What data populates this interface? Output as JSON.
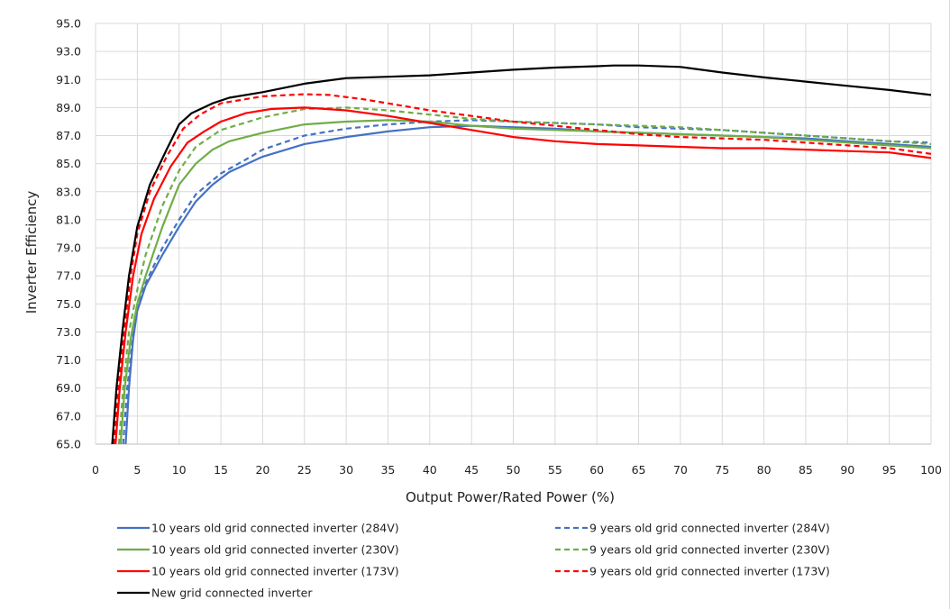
{
  "chart_data": {
    "type": "line",
    "title": "",
    "xlabel": "Output Power/Rated Power (%)",
    "ylabel": "Inverter Efficiency",
    "xlim": [
      0,
      100
    ],
    "ylim": [
      65,
      95
    ],
    "x_ticks": [
      0,
      5,
      10,
      15,
      20,
      25,
      30,
      35,
      40,
      45,
      50,
      55,
      60,
      65,
      70,
      75,
      80,
      85,
      90,
      95,
      100
    ],
    "y_ticks": [
      "65.0",
      "67.0",
      "69.0",
      "71.0",
      "73.0",
      "75.0",
      "77.0",
      "79.0",
      "81.0",
      "83.0",
      "85.0",
      "87.0",
      "89.0",
      "91.0",
      "93.0",
      "95.0"
    ],
    "grid": true,
    "legend_position": "bottom",
    "series": [
      {
        "name": "10 years old grid connected inverter (284V)",
        "color": "#4472C4",
        "dash": "solid",
        "points": [
          [
            3.6,
            65
          ],
          [
            4,
            69
          ],
          [
            4.5,
            72.5
          ],
          [
            5,
            74.5
          ],
          [
            6,
            76.3
          ],
          [
            8,
            78.5
          ],
          [
            10,
            80.5
          ],
          [
            12,
            82.3
          ],
          [
            14,
            83.5
          ],
          [
            16,
            84.4
          ],
          [
            20,
            85.5
          ],
          [
            25,
            86.4
          ],
          [
            30,
            86.9
          ],
          [
            35,
            87.3
          ],
          [
            40,
            87.6
          ],
          [
            45,
            87.7
          ],
          [
            50,
            87.6
          ],
          [
            55,
            87.5
          ],
          [
            60,
            87.3
          ],
          [
            65,
            87.2
          ],
          [
            70,
            87.1
          ],
          [
            75,
            87.0
          ],
          [
            80,
            86.9
          ],
          [
            85,
            86.8
          ],
          [
            90,
            86.6
          ],
          [
            95,
            86.4
          ],
          [
            100,
            86.2
          ]
        ]
      },
      {
        "name": "9 years old grid connected inverter (284V)",
        "color": "#4472C4",
        "dash": "dashed",
        "points": [
          [
            3.3,
            65
          ],
          [
            3.8,
            69
          ],
          [
            4.5,
            72.8
          ],
          [
            5,
            74.8
          ],
          [
            6,
            76.5
          ],
          [
            8,
            79
          ],
          [
            10,
            81
          ],
          [
            12,
            82.8
          ],
          [
            15,
            84.3
          ],
          [
            18,
            85.3
          ],
          [
            20,
            86
          ],
          [
            25,
            87
          ],
          [
            30,
            87.5
          ],
          [
            35,
            87.8
          ],
          [
            40,
            88.0
          ],
          [
            45,
            88.1
          ],
          [
            50,
            88.0
          ],
          [
            55,
            87.9
          ],
          [
            60,
            87.8
          ],
          [
            65,
            87.6
          ],
          [
            70,
            87.5
          ],
          [
            75,
            87.4
          ],
          [
            80,
            87.2
          ],
          [
            85,
            87.0
          ],
          [
            90,
            86.8
          ],
          [
            95,
            86.6
          ],
          [
            100,
            86.5
          ]
        ]
      },
      {
        "name": "10 years old grid connected inverter (230V)",
        "color": "#70AD47",
        "dash": "solid",
        "points": [
          [
            3,
            65
          ],
          [
            3.5,
            69
          ],
          [
            4.2,
            72.5
          ],
          [
            5,
            75
          ],
          [
            6,
            77
          ],
          [
            8,
            80.5
          ],
          [
            10,
            83.5
          ],
          [
            12,
            85
          ],
          [
            14,
            86
          ],
          [
            16,
            86.6
          ],
          [
            20,
            87.2
          ],
          [
            25,
            87.8
          ],
          [
            30,
            88
          ],
          [
            35,
            88.1
          ],
          [
            40,
            88
          ],
          [
            45,
            87.7
          ],
          [
            50,
            87.5
          ],
          [
            55,
            87.4
          ],
          [
            60,
            87.3
          ],
          [
            65,
            87.2
          ],
          [
            70,
            87.1
          ],
          [
            75,
            87.0
          ],
          [
            80,
            86.9
          ],
          [
            85,
            86.7
          ],
          [
            90,
            86.5
          ],
          [
            95,
            86.3
          ],
          [
            100,
            86.1
          ]
        ]
      },
      {
        "name": "9 years old grid connected inverter (230V)",
        "color": "#70AD47",
        "dash": "dashed",
        "points": [
          [
            2.8,
            65
          ],
          [
            3.3,
            69
          ],
          [
            4,
            73
          ],
          [
            5,
            76
          ],
          [
            6,
            78.5
          ],
          [
            8,
            82
          ],
          [
            10,
            84.5
          ],
          [
            12,
            86.2
          ],
          [
            15,
            87.4
          ],
          [
            20,
            88.3
          ],
          [
            25,
            88.9
          ],
          [
            30,
            89
          ],
          [
            35,
            88.8
          ],
          [
            40,
            88.5
          ],
          [
            45,
            88.2
          ],
          [
            50,
            88
          ],
          [
            55,
            87.9
          ],
          [
            60,
            87.8
          ],
          [
            65,
            87.7
          ],
          [
            70,
            87.6
          ],
          [
            75,
            87.4
          ],
          [
            80,
            87.2
          ],
          [
            85,
            87.0
          ],
          [
            90,
            86.8
          ],
          [
            95,
            86.6
          ],
          [
            100,
            86.4
          ]
        ]
      },
      {
        "name": "10 years old grid connected inverter (173V)",
        "color": "#FF0000",
        "dash": "solid",
        "points": [
          [
            2.4,
            65
          ],
          [
            2.9,
            69
          ],
          [
            3.6,
            73
          ],
          [
            4.5,
            77
          ],
          [
            5.5,
            80
          ],
          [
            7,
            82.5
          ],
          [
            9,
            84.8
          ],
          [
            11,
            86.5
          ],
          [
            13,
            87.3
          ],
          [
            15,
            88
          ],
          [
            18,
            88.6
          ],
          [
            21,
            88.9
          ],
          [
            25,
            89
          ],
          [
            30,
            88.8
          ],
          [
            35,
            88.4
          ],
          [
            40,
            87.9
          ],
          [
            45,
            87.4
          ],
          [
            50,
            86.9
          ],
          [
            55,
            86.6
          ],
          [
            60,
            86.4
          ],
          [
            65,
            86.3
          ],
          [
            70,
            86.2
          ],
          [
            75,
            86.1
          ],
          [
            80,
            86.1
          ],
          [
            85,
            86.0
          ],
          [
            90,
            85.9
          ],
          [
            95,
            85.8
          ],
          [
            100,
            85.4
          ]
        ]
      },
      {
        "name": "9 years old grid connected inverter (173V)",
        "color": "#FF0000",
        "dash": "dashed",
        "points": [
          [
            2.2,
            65
          ],
          [
            2.7,
            69
          ],
          [
            3.4,
            73
          ],
          [
            4.2,
            77
          ],
          [
            5,
            80
          ],
          [
            6.5,
            83
          ],
          [
            8.5,
            85.5
          ],
          [
            10.5,
            87.5
          ],
          [
            12.5,
            88.5
          ],
          [
            15,
            89.3
          ],
          [
            20,
            89.8
          ],
          [
            25,
            89.95
          ],
          [
            28,
            89.9
          ],
          [
            32,
            89.6
          ],
          [
            35,
            89.3
          ],
          [
            40,
            88.8
          ],
          [
            45,
            88.4
          ],
          [
            50,
            88
          ],
          [
            55,
            87.7
          ],
          [
            60,
            87.4
          ],
          [
            65,
            87.1
          ],
          [
            70,
            86.9
          ],
          [
            75,
            86.8
          ],
          [
            80,
            86.7
          ],
          [
            85,
            86.5
          ],
          [
            90,
            86.3
          ],
          [
            95,
            86.1
          ],
          [
            100,
            85.7
          ]
        ]
      },
      {
        "name": "New grid connected inverter",
        "color": "#000000",
        "dash": "solid",
        "points": [
          [
            2,
            65
          ],
          [
            2.5,
            69
          ],
          [
            3.2,
            73
          ],
          [
            4,
            77
          ],
          [
            5,
            80.5
          ],
          [
            6.5,
            83.5
          ],
          [
            8.5,
            86
          ],
          [
            10,
            87.8
          ],
          [
            11.5,
            88.6
          ],
          [
            14,
            89.3
          ],
          [
            16,
            89.7
          ],
          [
            20,
            90.1
          ],
          [
            25,
            90.7
          ],
          [
            30,
            91.1
          ],
          [
            35,
            91.2
          ],
          [
            40,
            91.3
          ],
          [
            45,
            91.5
          ],
          [
            50,
            91.7
          ],
          [
            55,
            91.85
          ],
          [
            60,
            91.95
          ],
          [
            62,
            92
          ],
          [
            65,
            92
          ],
          [
            70,
            91.9
          ],
          [
            75,
            91.5
          ],
          [
            80,
            91.15
          ],
          [
            85,
            90.85
          ],
          [
            90,
            90.55
          ],
          [
            95,
            90.25
          ],
          [
            100,
            89.9
          ]
        ]
      }
    ]
  }
}
